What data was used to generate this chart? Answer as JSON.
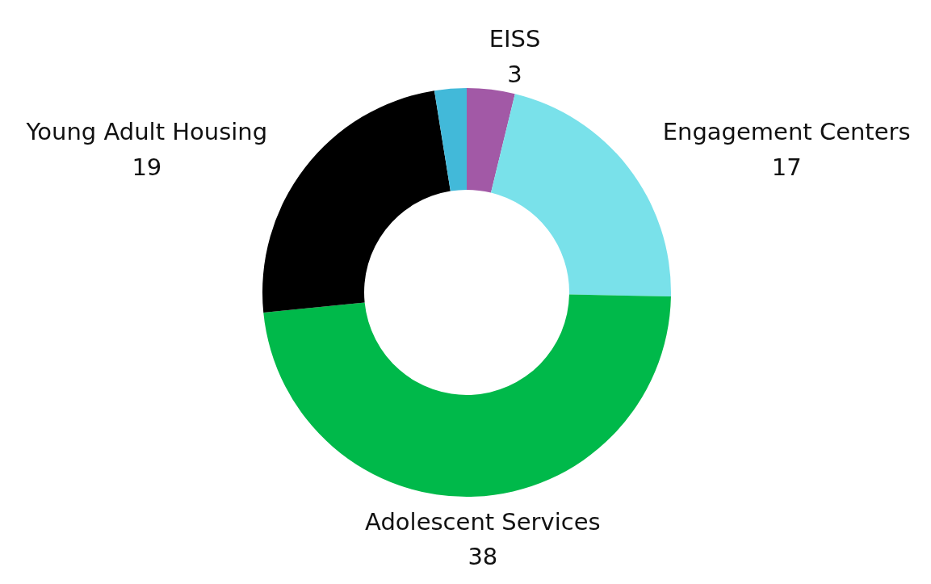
{
  "chart_data": {
    "type": "donut",
    "categories": [
      "EISS",
      "Engagement Centers",
      "Adolescent Services",
      "Young Adult Housing",
      null
    ],
    "values": [
      3,
      17,
      38,
      19,
      2
    ],
    "colors": [
      "#a259a6",
      "#79e1ea",
      "#00b94a",
      "#000000",
      "#42b9d9"
    ],
    "value_labels": [
      "3",
      "17",
      "38",
      "19",
      null
    ]
  }
}
